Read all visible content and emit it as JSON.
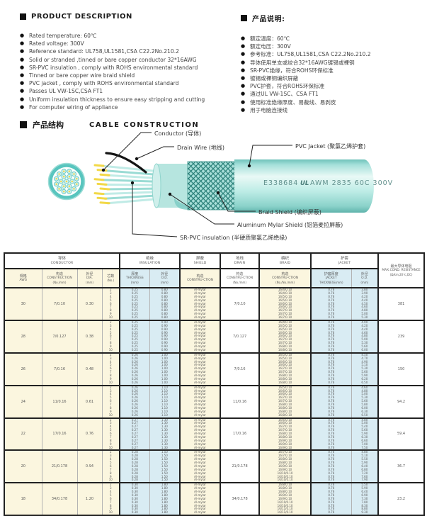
{
  "product_description": {
    "title": "PRODUCT DESCRIPTION",
    "items": [
      "Rated temperature: 60℃",
      "Rated voltage: 300V",
      "Reference standard: UL758,UL1581,CSA C22.2No.210.2",
      "Solid or stranded ,tinned or bare copper conductor 32*16AWG",
      "SR-PVC insulation , comply with ROHS environmental standard",
      "Tinned or bare copper wire braid shield",
      "PVC jacket , comply with ROHS environmental standard",
      "Passes UL VW-1SC,CSA FT1",
      "Uniform insulation thickness to ensure easy stripping and cutting",
      "For computer wiring of appliance"
    ]
  },
  "product_description_zh": {
    "title": "产品说明:",
    "items": [
      "额定温度：60℃",
      "额定电压：300V",
      "参考标准：UL758,UL1581,CSA C22.2No.210.2",
      "导体使用单支或绞合32*16AWG镀锡或裸铜",
      "SR-PVC绝缘，符合ROHS环保标准",
      "镀锡或裸铜编织屏蔽",
      "PVC护套，符合ROHS环保标准",
      "通过UL VW-1SC、CSA FT1",
      "使用标准绝缘厚度、易裁线、易剥皮",
      "用于电脑连接线"
    ]
  },
  "construction": {
    "title_zh": "产品结构",
    "title_en": "CABLE CONSTRUCTION",
    "labels": {
      "conductor": "Conductor (导体)",
      "drain_wire": "Drain Wire (地线)",
      "pvc_jacket": "PVC Jacket (聚氯乙烯护套)",
      "braid_shield": "Braid Shield (编织屏蔽)",
      "aluminum_mylar_shield": "Aluminum Mylar Shield (铝箔麦拉屏蔽)",
      "sr_pvc_insulation": "SR-PVC insulation (半硬质聚氯乙烯绝缘)"
    },
    "print": {
      "cert_no": "E338684",
      "ul_mark": "UL",
      "spec": "AWM 2835 60C 300V"
    }
  },
  "colors": {
    "accent_teal": "#5fc9c2",
    "cell_cream": "#fbf6df",
    "cell_blue": "#d9ecf3",
    "conductor_yellow": "#f2d847"
  },
  "spec_table": {
    "groups": [
      {
        "zh": "导体",
        "en": "CONDUCTOR",
        "span": 4
      },
      {
        "zh": "绝缘",
        "en": "INSULATION",
        "span": 2
      },
      {
        "zh": "屏蔽",
        "en": "SHIELD",
        "span": 1
      },
      {
        "zh": "地线",
        "en": "DRAIN",
        "span": 1
      },
      {
        "zh": "编织",
        "en": "BRAID",
        "span": 1
      },
      {
        "zh": "护套",
        "en": "JACKET",
        "span": 2
      }
    ],
    "columns": [
      {
        "zh": "规格",
        "en": "AWG",
        "unit": ""
      },
      {
        "zh": "构造",
        "en": "CONSTRUCTION",
        "unit": "(No./mm)"
      },
      {
        "zh": "外径",
        "en": "DIA.",
        "unit": "(mm)"
      },
      {
        "zh": "芯数",
        "en": "",
        "unit": "(No.)"
      },
      {
        "zh": "厚度",
        "en": "THICKNESS",
        "unit": "(mm)"
      },
      {
        "zh": "外径",
        "en": "O.D.",
        "unit": "(mm)"
      },
      {
        "zh": "构造",
        "en": "CONSTRU-CTION",
        "unit": ""
      },
      {
        "zh": "构造",
        "en": "CONSTRU-CTION",
        "unit": "(No./mm)"
      },
      {
        "zh": "构造",
        "en": "CONSTRU-CTION",
        "unit": "(No./No./mm)"
      },
      {
        "zh": "护套厚度",
        "en": "JACKET",
        "unit": "THICKNESS(mm)"
      },
      {
        "zh": "外径",
        "en": "O.D.",
        "unit": "(mm)"
      }
    ],
    "resistance_header": {
      "zh": "最大导体电阻",
      "en": "MAX.COND. RESISTANCE",
      "unit": "(Ω/km,20℃,DC)"
    },
    "blocks": [
      {
        "awg": "30",
        "construction": "7/0.10",
        "dia": "0.30",
        "drain": "7/0.10",
        "resistance": "381",
        "rows": [
          {
            "cores": "2",
            "ins_t": "0.25",
            "ins_od": "0.80",
            "shield": "Al-mylar",
            "braid": "16/4/0.10",
            "jkt_t": "0.76",
            "jkt_od": "3.80"
          },
          {
            "cores": "3",
            "ins_t": "0.25",
            "ins_od": "0.80",
            "shield": "Al-mylar",
            "braid": "16/4/0.10",
            "jkt_t": "0.76",
            "jkt_od": "3.90"
          },
          {
            "cores": "4",
            "ins_t": "0.25",
            "ins_od": "0.80",
            "shield": "Al-mylar",
            "braid": "16/5/0.10",
            "jkt_t": "0.76",
            "jkt_od": "4.20"
          },
          {
            "cores": "5",
            "ins_t": "0.25",
            "ins_od": "0.80",
            "shield": "Al-mylar",
            "braid": "16/5/0.10",
            "jkt_t": "0.76",
            "jkt_od": "4.40"
          },
          {
            "cores": "6",
            "ins_t": "0.25",
            "ins_od": "0.80",
            "shield": "Al-mylar",
            "braid": "16/6/0.10",
            "jkt_t": "0.76",
            "jkt_od": "4.50"
          },
          {
            "cores": "7",
            "ins_t": "0.25",
            "ins_od": "0.80",
            "shield": "Al-mylar",
            "braid": "16/6/0.10",
            "jkt_t": "0.76",
            "jkt_od": "4.60"
          },
          {
            "cores": "8",
            "ins_t": "0.25",
            "ins_od": "0.80",
            "shield": "Al-mylar",
            "braid": "16/7/0.10",
            "jkt_t": "0.76",
            "jkt_od": "4.80"
          },
          {
            "cores": "9",
            "ins_t": "0.25",
            "ins_od": "0.80",
            "shield": "Al-mylar",
            "braid": "16/7/0.10",
            "jkt_t": "0.76",
            "jkt_od": "5.00"
          },
          {
            "cores": "10",
            "ins_t": "0.25",
            "ins_od": "0.80",
            "shield": "Al-mylar",
            "braid": "16/7/0.10",
            "jkt_t": "0.76",
            "jkt_od": "5.30"
          }
        ]
      },
      {
        "awg": "28",
        "construction": "7/0.127",
        "dia": "0.38",
        "drain": "7/0.127",
        "resistance": "239",
        "rows": [
          {
            "cores": "2",
            "ins_t": "0.25",
            "ins_od": "0.90",
            "shield": "Al-mylar",
            "braid": "16/4/0.10",
            "jkt_t": "0.76",
            "jkt_od": "4.00"
          },
          {
            "cores": "3",
            "ins_t": "0.25",
            "ins_od": "0.90",
            "shield": "Al-mylar",
            "braid": "16/5/0.10",
            "jkt_t": "0.76",
            "jkt_od": "4.20"
          },
          {
            "cores": "4",
            "ins_t": "0.25",
            "ins_od": "0.90",
            "shield": "Al-mylar",
            "braid": "16/5/0.10",
            "jkt_t": "0.76",
            "jkt_od": "4.40"
          },
          {
            "cores": "5",
            "ins_t": "0.25",
            "ins_od": "0.90",
            "shield": "Al-mylar",
            "braid": "16/6/0.10",
            "jkt_t": "0.76",
            "jkt_od": "4.60"
          },
          {
            "cores": "6",
            "ins_t": "0.25",
            "ins_od": "0.90",
            "shield": "Al-mylar",
            "braid": "16/6/0.10",
            "jkt_t": "0.76",
            "jkt_od": "4.80"
          },
          {
            "cores": "7",
            "ins_t": "0.25",
            "ins_od": "0.90",
            "shield": "Al-mylar",
            "braid": "16/7/0.10",
            "jkt_t": "0.76",
            "jkt_od": "5.00"
          },
          {
            "cores": "8",
            "ins_t": "0.25",
            "ins_od": "0.90",
            "shield": "Al-mylar",
            "braid": "16/7/0.10",
            "jkt_t": "0.76",
            "jkt_od": "5.30"
          },
          {
            "cores": "9",
            "ins_t": "0.25",
            "ins_od": "0.90",
            "shield": "Al-mylar",
            "braid": "16/8/0.10",
            "jkt_t": "0.76",
            "jkt_od": "5.60"
          },
          {
            "cores": "10",
            "ins_t": "0.25",
            "ins_od": "0.90",
            "shield": "Al-mylar",
            "braid": "16/8/0.10",
            "jkt_t": "0.76",
            "jkt_od": "6.00"
          }
        ]
      },
      {
        "awg": "26",
        "construction": "7/0.16",
        "dia": "0.48",
        "drain": "7/0.16",
        "resistance": "150",
        "rows": [
          {
            "cores": "2",
            "ins_t": "0.26",
            "ins_od": "1.00",
            "shield": "Al-mylar",
            "braid": "16/5/0.10",
            "jkt_t": "0.76",
            "jkt_od": "4.50"
          },
          {
            "cores": "3",
            "ins_t": "0.26",
            "ins_od": "1.00",
            "shield": "Al-mylar",
            "braid": "16/5/0.10",
            "jkt_t": "0.76",
            "jkt_od": "4.70"
          },
          {
            "cores": "4",
            "ins_t": "0.26",
            "ins_od": "1.00",
            "shield": "Al-mylar",
            "braid": "16/6/0.10",
            "jkt_t": "0.76",
            "jkt_od": "4.90"
          },
          {
            "cores": "5",
            "ins_t": "0.26",
            "ins_od": "1.00",
            "shield": "Al-mylar",
            "braid": "16/6/0.10",
            "jkt_t": "0.76",
            "jkt_od": "5.10"
          },
          {
            "cores": "6",
            "ins_t": "0.26",
            "ins_od": "1.00",
            "shield": "Al-mylar",
            "braid": "16/7/0.10",
            "jkt_t": "0.76",
            "jkt_od": "5.30"
          },
          {
            "cores": "7",
            "ins_t": "0.26",
            "ins_od": "1.00",
            "shield": "Al-mylar",
            "braid": "16/7/0.10",
            "jkt_t": "0.76",
            "jkt_od": "5.60"
          },
          {
            "cores": "8",
            "ins_t": "0.26",
            "ins_od": "1.00",
            "shield": "Al-mylar",
            "braid": "16/8/0.10",
            "jkt_t": "0.76",
            "jkt_od": "5.90"
          },
          {
            "cores": "9",
            "ins_t": "0.26",
            "ins_od": "1.00",
            "shield": "Al-mylar",
            "braid": "16/8/0.10",
            "jkt_t": "0.76",
            "jkt_od": "6.20"
          },
          {
            "cores": "10",
            "ins_t": "0.26",
            "ins_od": "1.00",
            "shield": "Al-mylar",
            "braid": "16/8/0.10",
            "jkt_t": "0.76",
            "jkt_od": "6.50"
          }
        ]
      },
      {
        "awg": "24",
        "construction": "11/0.16",
        "dia": "0.61",
        "drain": "11/0.16",
        "resistance": "94.2",
        "rows": [
          {
            "cores": "2",
            "ins_t": "0.26",
            "ins_od": "1.10",
            "shield": "Al-mylar",
            "braid": "16/5/0.10",
            "jkt_t": "0.76",
            "jkt_od": "4.60"
          },
          {
            "cores": "3",
            "ins_t": "0.26",
            "ins_od": "1.10",
            "shield": "Al-mylar",
            "braid": "16/6/0.10",
            "jkt_t": "0.76",
            "jkt_od": "4.80"
          },
          {
            "cores": "4",
            "ins_t": "0.26",
            "ins_od": "1.10",
            "shield": "Al-mylar",
            "braid": "16/6/0.10",
            "jkt_t": "0.76",
            "jkt_od": "5.00"
          },
          {
            "cores": "5",
            "ins_t": "0.26",
            "ins_od": "1.10",
            "shield": "Al-mylar",
            "braid": "16/7/0.10",
            "jkt_t": "0.76",
            "jkt_od": "5.30"
          },
          {
            "cores": "6",
            "ins_t": "0.26",
            "ins_od": "1.10",
            "shield": "Al-mylar",
            "braid": "16/7/0.10",
            "jkt_t": "0.76",
            "jkt_od": "5.60"
          },
          {
            "cores": "7",
            "ins_t": "0.26",
            "ins_od": "1.10",
            "shield": "Al-mylar",
            "braid": "16/8/0.10",
            "jkt_t": "0.76",
            "jkt_od": "5.80"
          },
          {
            "cores": "8",
            "ins_t": "0.26",
            "ins_od": "1.10",
            "shield": "Al-mylar",
            "braid": "16/8/0.10",
            "jkt_t": "0.76",
            "jkt_od": "6.00"
          },
          {
            "cores": "9",
            "ins_t": "0.26",
            "ins_od": "1.10",
            "shield": "Al-mylar",
            "braid": "16/8/0.10",
            "jkt_t": "0.76",
            "jkt_od": "6.30"
          },
          {
            "cores": "10",
            "ins_t": "0.26",
            "ins_od": "1.10",
            "shield": "Al-mylar",
            "braid": "16/8/0.10",
            "jkt_t": "0.76",
            "jkt_od": "6.50"
          }
        ]
      },
      {
        "awg": "22",
        "construction": "17/0.16",
        "dia": "0.76",
        "drain": "17/0.16",
        "resistance": "59.4",
        "rows": [
          {
            "cores": "2",
            "ins_t": "0.27",
            "ins_od": "1.30",
            "shield": "Al-mylar",
            "braid": "16/6/0.10",
            "jkt_t": "0.76",
            "jkt_od": "4.80"
          },
          {
            "cores": "3",
            "ins_t": "0.27",
            "ins_od": "1.30",
            "shield": "Al-mylar",
            "braid": "16/6/0.10",
            "jkt_t": "0.76",
            "jkt_od": "5.00"
          },
          {
            "cores": "4",
            "ins_t": "0.27",
            "ins_od": "1.30",
            "shield": "Al-mylar",
            "braid": "16/7/0.10",
            "jkt_t": "0.76",
            "jkt_od": "5.40"
          },
          {
            "cores": "5",
            "ins_t": "0.27",
            "ins_od": "1.30",
            "shield": "Al-mylar",
            "braid": "16/7/0.10",
            "jkt_t": "0.76",
            "jkt_od": "5.60"
          },
          {
            "cores": "6",
            "ins_t": "0.27",
            "ins_od": "1.30",
            "shield": "Al-mylar",
            "braid": "16/8/0.10",
            "jkt_t": "0.76",
            "jkt_od": "5.90"
          },
          {
            "cores": "7",
            "ins_t": "0.27",
            "ins_od": "1.30",
            "shield": "Al-mylar",
            "braid": "16/8/0.10",
            "jkt_t": "0.76",
            "jkt_od": "6.30"
          },
          {
            "cores": "8",
            "ins_t": "0.27",
            "ins_od": "1.30",
            "shield": "Al-mylar",
            "braid": "16/9/0.10",
            "jkt_t": "0.76",
            "jkt_od": "6.60"
          },
          {
            "cores": "9",
            "ins_t": "0.27",
            "ins_od": "1.30",
            "shield": "Al-mylar",
            "braid": "16/9/0.10",
            "jkt_t": "0.76",
            "jkt_od": "7.00"
          },
          {
            "cores": "10",
            "ins_t": "0.27",
            "ins_od": "1.30",
            "shield": "Al-mylar",
            "braid": "16/9/0.10",
            "jkt_t": "0.76",
            "jkt_od": "7.50"
          }
        ]
      },
      {
        "awg": "20",
        "construction": "21/0.178",
        "dia": "0.94",
        "drain": "21/0.178",
        "resistance": "36.7",
        "rows": [
          {
            "cores": "2",
            "ins_t": "0.28",
            "ins_od": "1.50",
            "shield": "Al-mylar",
            "braid": "16/7/0.10",
            "jkt_t": "0.76",
            "jkt_od": "4.80"
          },
          {
            "cores": "3",
            "ins_t": "0.28",
            "ins_od": "1.50",
            "shield": "Al-mylar",
            "braid": "16/7/0.10",
            "jkt_t": "0.76",
            "jkt_od": "5.10"
          },
          {
            "cores": "4",
            "ins_t": "0.28",
            "ins_od": "1.50",
            "shield": "Al-mylar",
            "braid": "16/8/0.10",
            "jkt_t": "0.76",
            "jkt_od": "5.50"
          },
          {
            "cores": "5",
            "ins_t": "0.28",
            "ins_od": "1.50",
            "shield": "Al-mylar",
            "braid": "16/8/0.10",
            "jkt_t": "0.76",
            "jkt_od": "5.90"
          },
          {
            "cores": "6",
            "ins_t": "0.28",
            "ins_od": "1.50",
            "shield": "Al-mylar",
            "braid": "16/9/0.10",
            "jkt_t": "0.76",
            "jkt_od": "6.40"
          },
          {
            "cores": "7",
            "ins_t": "0.28",
            "ins_od": "1.50",
            "shield": "Al-mylar",
            "braid": "16/9/0.10",
            "jkt_t": "0.76",
            "jkt_od": "6.80"
          },
          {
            "cores": "8",
            "ins_t": "0.28",
            "ins_od": "1.50",
            "shield": "Al-mylar",
            "braid": "16/10/0.10",
            "jkt_t": "0.76",
            "jkt_od": "7.20"
          },
          {
            "cores": "9",
            "ins_t": "0.28",
            "ins_od": "1.50",
            "shield": "Al-mylar",
            "braid": "16/10/0.10",
            "jkt_t": "0.76",
            "jkt_od": "7.60"
          },
          {
            "cores": "10",
            "ins_t": "0.28",
            "ins_od": "1.50",
            "shield": "Al-mylar",
            "braid": "16/10/0.10",
            "jkt_t": "0.76",
            "jkt_od": "7.90"
          }
        ]
      },
      {
        "awg": "18",
        "construction": "34/0.178",
        "dia": "1.20",
        "drain": "34/0.178",
        "resistance": "23.2",
        "rows": [
          {
            "cores": "2",
            "ins_t": "0.30",
            "ins_od": "1.80",
            "shield": "Al-mylar",
            "braid": "16/8/0.10",
            "jkt_t": "0.76",
            "jkt_od": "5.50"
          },
          {
            "cores": "3",
            "ins_t": "0.30",
            "ins_od": "1.80",
            "shield": "Al-mylar",
            "braid": "16/8/0.10",
            "jkt_t": "0.76",
            "jkt_od": "5.90"
          },
          {
            "cores": "4",
            "ins_t": "0.30",
            "ins_od": "1.80",
            "shield": "Al-mylar",
            "braid": "16/8/0.10",
            "jkt_t": "0.76",
            "jkt_od": "6.40"
          },
          {
            "cores": "5",
            "ins_t": "0.30",
            "ins_od": "1.80",
            "shield": "Al-mylar",
            "braid": "16/9/0.10",
            "jkt_t": "0.76",
            "jkt_od": "6.90"
          },
          {
            "cores": "6",
            "ins_t": "0.30",
            "ins_od": "1.80",
            "shield": "Al-mylar",
            "braid": "16/9/0.10",
            "jkt_t": "0.76",
            "jkt_od": "7.30"
          },
          {
            "cores": "7",
            "ins_t": "0.30",
            "ins_od": "1.80",
            "shield": "Al-mylar",
            "braid": "16/10/0.10",
            "jkt_t": "0.76",
            "jkt_od": "7.80"
          },
          {
            "cores": "8",
            "ins_t": "0.30",
            "ins_od": "1.80",
            "shield": "Al-mylar",
            "braid": "16/10/0.10",
            "jkt_t": "0.76",
            "jkt_od": "8.30"
          },
          {
            "cores": "9",
            "ins_t": "0.30",
            "ins_od": "1.80",
            "shield": "Al-mylar",
            "braid": "16/11/0.10",
            "jkt_t": "0.76",
            "jkt_od": "8.80"
          },
          {
            "cores": "10",
            "ins_t": "0.30",
            "ins_od": "1.80",
            "shield": "Al-mylar",
            "braid": "16/11/0.10",
            "jkt_t": "0.76",
            "jkt_od": "9.30"
          }
        ]
      }
    ]
  }
}
